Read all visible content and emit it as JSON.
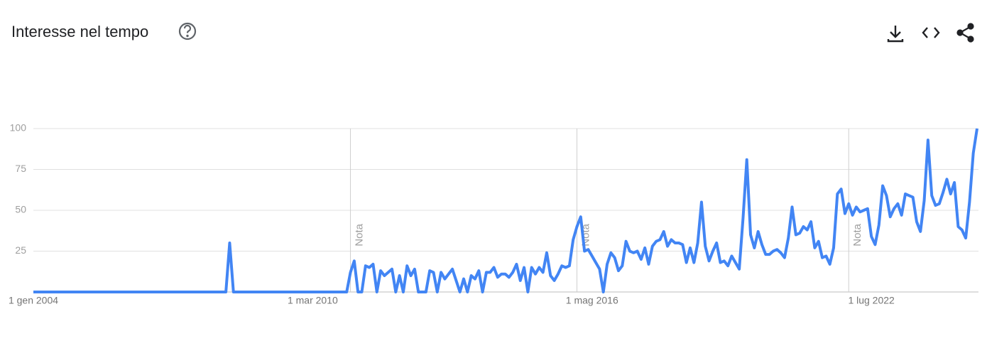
{
  "chart_data": {
    "type": "line",
    "title": "Interesse nel tempo",
    "categories": [
      "1 gen 2004",
      null,
      null,
      null,
      null,
      null,
      null,
      null,
      null,
      null,
      null,
      null,
      null,
      null,
      null,
      null,
      null,
      null,
      null,
      null,
      null,
      null,
      null,
      null,
      null,
      null,
      null,
      null,
      null,
      null,
      null,
      null,
      null,
      null,
      null,
      null,
      null,
      null,
      null,
      null,
      null,
      null,
      null,
      null,
      null,
      null,
      null,
      null,
      null,
      null,
      null,
      null,
      null,
      null,
      null,
      null,
      null,
      null,
      null,
      null,
      null,
      null,
      null,
      null,
      null,
      null,
      null,
      null,
      null,
      null,
      null,
      null,
      null,
      null,
      "1 mar 2010",
      null,
      null,
      null,
      null,
      null,
      null,
      null,
      null,
      null,
      null,
      null,
      null,
      null,
      null,
      null,
      null,
      null,
      null,
      null,
      null,
      null,
      null,
      null,
      null,
      null,
      null,
      null,
      null,
      null,
      null,
      null,
      null,
      null,
      null,
      null,
      null,
      null,
      null,
      null,
      null,
      null,
      null,
      null,
      null,
      null,
      null,
      null,
      null,
      null,
      null,
      null,
      null,
      null,
      null,
      null,
      null,
      null,
      null,
      null,
      null,
      null,
      null,
      null,
      null,
      null,
      null,
      null,
      null,
      null,
      null,
      null,
      null,
      null,
      "1 mag 2016",
      null,
      null,
      null,
      null,
      null,
      null,
      null,
      null,
      null,
      null,
      null,
      null,
      null,
      null,
      null,
      null,
      null,
      null,
      null,
      null,
      null,
      null,
      null,
      null,
      null,
      null,
      null,
      null,
      null,
      null,
      null,
      null,
      null,
      null,
      null,
      null,
      null,
      null,
      null,
      null,
      null,
      null,
      null,
      null,
      null,
      null,
      null,
      null,
      null,
      null,
      null,
      null,
      null,
      null,
      null,
      null,
      null,
      null,
      null,
      null,
      null,
      null,
      null,
      null,
      null,
      null,
      null,
      null,
      null,
      null,
      null,
      null,
      null,
      "1 lug 2022",
      null,
      null,
      null,
      null,
      null,
      null,
      null,
      null,
      null,
      null,
      null,
      null,
      null,
      null,
      null,
      null,
      null,
      null,
      null,
      null,
      null,
      null,
      null,
      null,
      null,
      null,
      null,
      null
    ],
    "series": [
      {
        "color": "#4285f4",
        "values": [
          0,
          0,
          0,
          0,
          0,
          0,
          0,
          0,
          0,
          0,
          0,
          0,
          0,
          0,
          0,
          0,
          0,
          0,
          0,
          0,
          0,
          0,
          0,
          0,
          0,
          0,
          0,
          0,
          0,
          0,
          0,
          0,
          0,
          0,
          0,
          0,
          0,
          0,
          0,
          0,
          0,
          0,
          0,
          0,
          0,
          0,
          0,
          0,
          0,
          0,
          0,
          0,
          30,
          0,
          0,
          0,
          0,
          0,
          0,
          0,
          0,
          0,
          0,
          0,
          0,
          0,
          0,
          0,
          0,
          0,
          0,
          0,
          0,
          0,
          0,
          0,
          0,
          0,
          0,
          0,
          0,
          0,
          0,
          0,
          12,
          19,
          0,
          0,
          16,
          15,
          17,
          0,
          13,
          10,
          12,
          14,
          0,
          10,
          0,
          16,
          10,
          14,
          0,
          0,
          0,
          13,
          12,
          0,
          12,
          8,
          11,
          14,
          7,
          0,
          8,
          0,
          10,
          8,
          13,
          0,
          12,
          12,
          15,
          9,
          11,
          11,
          9,
          12,
          17,
          7,
          15,
          0,
          15,
          11,
          15,
          12,
          24,
          10,
          7,
          11,
          16,
          15,
          16,
          32,
          40,
          46,
          25,
          26,
          22,
          18,
          14,
          0,
          17,
          24,
          21,
          13,
          16,
          31,
          25,
          24,
          25,
          20,
          27,
          17,
          28,
          31,
          32,
          37,
          28,
          32,
          30,
          30,
          29,
          18,
          27,
          18,
          30,
          55,
          28,
          19,
          25,
          30,
          18,
          19,
          16,
          22,
          18,
          14,
          45,
          81,
          35,
          27,
          37,
          29,
          23,
          23,
          25,
          26,
          24,
          21,
          33,
          52,
          35,
          36,
          40,
          38,
          43,
          27,
          31,
          21,
          22,
          17,
          27,
          60,
          63,
          48,
          54,
          47,
          52,
          49,
          50,
          51,
          34,
          29,
          41,
          65,
          59,
          46,
          51,
          54,
          47,
          60,
          59,
          58,
          43,
          37,
          56,
          93,
          59,
          53,
          54,
          61,
          69,
          60,
          67,
          40,
          38,
          33,
          55,
          85,
          100
        ]
      }
    ],
    "ylim": [
      0,
      100
    ],
    "yticks": [
      25,
      50,
      75,
      100
    ],
    "grid": true,
    "annotations": [
      {
        "at": 84,
        "text": "Nota"
      },
      {
        "at": 144,
        "text": "Nota"
      },
      {
        "at": 216,
        "text": "Nota"
      }
    ]
  }
}
